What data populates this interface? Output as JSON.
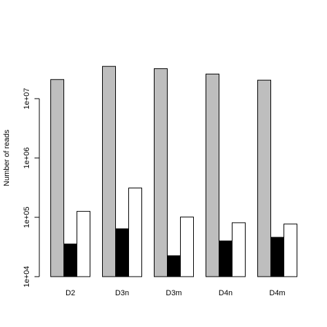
{
  "chart_data": {
    "type": "bar",
    "title": "",
    "xlabel": "",
    "ylabel": "Number of reads",
    "yscale": "log10",
    "ylim": [
      10000,
      31622776
    ],
    "yticks": [
      10000,
      100000,
      1000000,
      10000000
    ],
    "ytick_labels": [
      "1e+04",
      "1e+05",
      "1e+06",
      "1e+07"
    ],
    "grid": false,
    "legend": "none",
    "categories": [
      "D2",
      "D3n",
      "D3m",
      "D4n",
      "D4m"
    ],
    "series": [
      {
        "values": [
          21000000,
          35000000,
          32000000,
          26000000,
          20500000
        ],
        "color": "#bebebe"
      },
      {
        "values": [
          35500,
          64000,
          22500,
          40000,
          46000
        ],
        "color": "#000000"
      },
      {
        "values": [
          126000,
          312000,
          101000,
          81000,
          77000
        ],
        "color": "#ffffff"
      }
    ]
  }
}
